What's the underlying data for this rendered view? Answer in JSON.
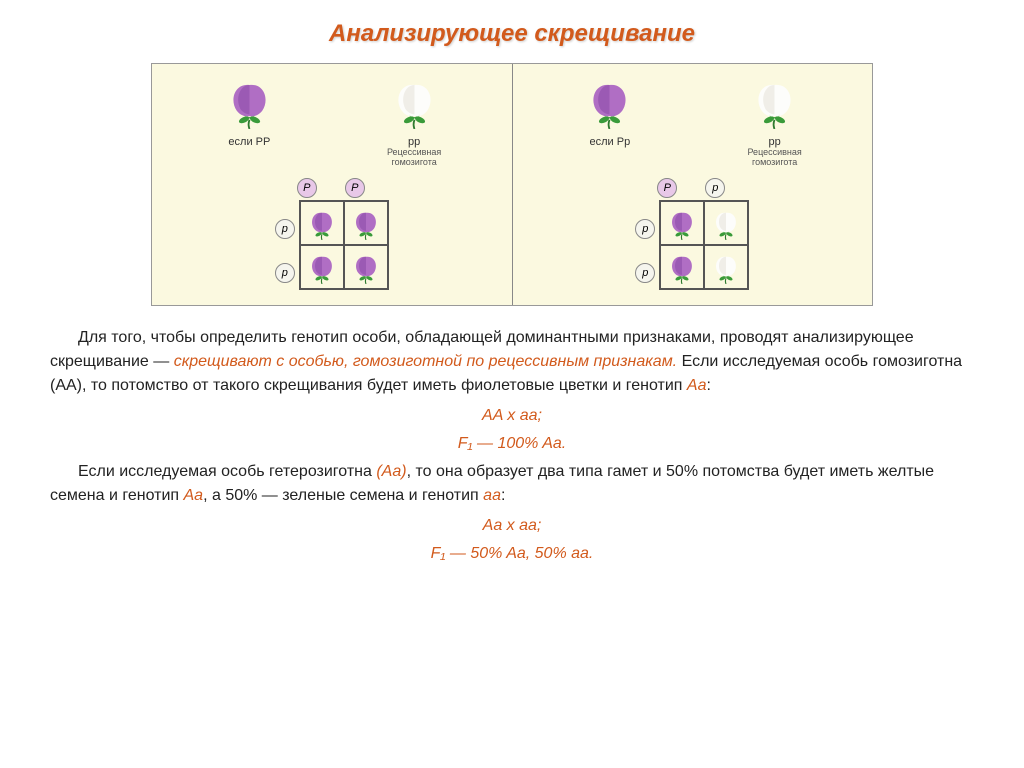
{
  "title": "Анализирующее скрещивание",
  "panels": {
    "left": {
      "parent1": {
        "color": "purple",
        "label": "если PP"
      },
      "parent2": {
        "color": "white",
        "label": "pp",
        "sub": "Рецессивная гомозигота"
      },
      "col_alleles": [
        "P",
        "P"
      ],
      "row_alleles": [
        "p",
        "p"
      ],
      "cells": [
        "purple",
        "purple",
        "purple",
        "purple"
      ]
    },
    "right": {
      "parent1": {
        "color": "purple",
        "label": "если Pp"
      },
      "parent2": {
        "color": "white",
        "label": "pp",
        "sub": "Рецессивная гомозигота"
      },
      "col_alleles": [
        "P",
        "p"
      ],
      "row_alleles": [
        "p",
        "p"
      ],
      "cells": [
        "purple",
        "white",
        "purple",
        "white"
      ]
    }
  },
  "colors": {
    "purple_petal": "#b06ec4",
    "purple_dark": "#8a4aa8",
    "white_petal": "#fdfdfb",
    "white_shadow": "#e6e2d8",
    "leaf": "#3a9b3a",
    "stem": "#2e7a2e"
  },
  "text": {
    "p1a": "Для того, чтобы определить генотип особи, обладающей доминантными признаками, проводят анализирующее скрещивание — ",
    "p1b": "скрещивают с особью, гомозиготной по рецессивным признакам.",
    "p1c": " Если исследуемая особь гомозиготна (AA), то потомство от такого скрещивания будет иметь фиолетовые цветки и генотип ",
    "p1d": "Aa",
    "p1e": ":",
    "f1a": "AA x aa;",
    "f1b": "F₁ — 100% Aa.",
    "p2a": "Если исследуемая особь гетерозиготна ",
    "p2b": "(Aa)",
    "p2c": ", то она образует два типа гамет и 50% потомства будет иметь желтые семена и генотип ",
    "p2d": "Aa",
    "p2e": ", а 50% — зеленые семена и генотип ",
    "p2f": "aa",
    "p2g": ":",
    "f2a": "Aa x aa;",
    "f2b": "F₁ — 50% Aa, 50% aa."
  }
}
